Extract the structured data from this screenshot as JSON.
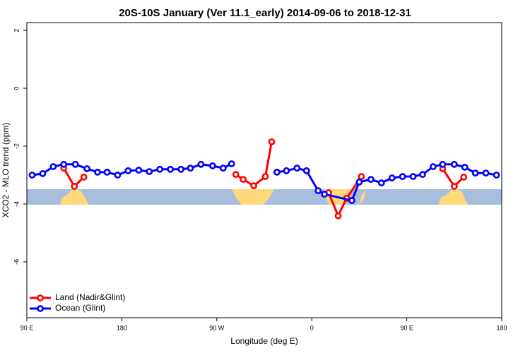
{
  "chart_data": {
    "type": "line",
    "title": "20S-10S January (Ver 11.1_early)   2014-09-06 to 2018-12-31",
    "x_label": "Longitude (deg E)",
    "y_label": "XCO2 - MLO trend (ppm)",
    "xlim": [
      90,
      540
    ],
    "ylim": [
      -7.93,
      2.27
    ],
    "xticks": [
      {
        "value": 90,
        "label": "90 E"
      },
      180,
      {
        "value": 270,
        "label": "90 W"
      },
      {
        "value": 360,
        "label": "0"
      },
      {
        "value": 450,
        "label": "90 E"
      },
      {
        "value": 540,
        "label": "180"
      }
    ],
    "yticks": [
      -6,
      -4,
      -2,
      0,
      2
    ],
    "legend": "bottom-left",
    "series": [
      {
        "name": "Land (Nadir&Glint)",
        "color": "#ff0000",
        "x": [
          125,
          135,
          144,
          null,
          288,
          295,
          305,
          316,
          322,
          null,
          376,
          385,
          393,
          407,
          null,
          484,
          495,
          504
        ],
        "values": [
          -2.76,
          -3.39,
          -3.07,
          null,
          -2.98,
          -3.15,
          -3.37,
          -3.05,
          -1.85,
          null,
          -3.61,
          -4.41,
          -3.8,
          -3.05,
          null,
          -2.78,
          -3.39,
          -3.07
        ]
      },
      {
        "name": "Ocean (Glint)",
        "color": "#0000ff",
        "x": [
          95,
          105,
          115,
          125,
          136,
          147,
          157,
          166,
          176,
          186,
          196,
          206,
          216,
          226,
          236,
          245,
          255,
          266,
          276,
          284,
          null,
          327,
          336,
          346,
          355,
          366,
          372,
          398,
          405,
          416,
          426,
          436,
          446,
          456,
          465,
          475,
          484,
          495,
          505,
          515,
          525,
          535
        ],
        "values": [
          -3.0,
          -2.95,
          -2.71,
          -2.63,
          -2.63,
          -2.78,
          -2.9,
          -2.9,
          -3.0,
          -2.85,
          -2.83,
          -2.88,
          -2.8,
          -2.8,
          -2.8,
          -2.76,
          -2.63,
          -2.68,
          -2.76,
          -2.61,
          null,
          -2.9,
          -2.85,
          -2.76,
          -2.85,
          -3.54,
          -3.66,
          -3.88,
          -3.24,
          -3.15,
          -3.27,
          -3.1,
          -3.05,
          -3.05,
          -2.98,
          -2.71,
          -2.63,
          -2.63,
          -2.73,
          -2.93,
          -2.93,
          -3.0
        ]
      }
    ]
  }
}
